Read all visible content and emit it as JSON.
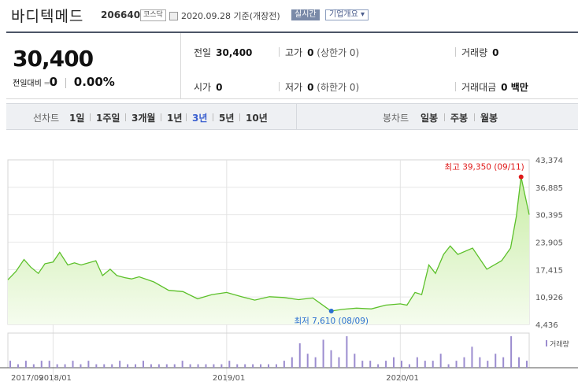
{
  "header": {
    "name": "바디텍메드",
    "code": "206640",
    "market": "코스닥",
    "date": "2020.09.28 기준(개장전)",
    "realtime_label": "실시간",
    "company_info_label": "기업개요"
  },
  "quote": {
    "price": "30,400",
    "change_label": "전일대비",
    "change_value": "0",
    "change_pct": "0.00%",
    "prev_close_label": "전일",
    "prev_close": "30,400",
    "high_label": "고가",
    "high": "0",
    "high_limit": "(상한가 0)",
    "volume_label": "거래량",
    "volume": "0",
    "open_label": "시가",
    "open": "0",
    "low_label": "저가",
    "low": "0",
    "low_limit": "(하한가 0)",
    "amount_label": "거래대금",
    "amount": "0 백만"
  },
  "periods": {
    "line_label": "선차트",
    "items": [
      "1일",
      "1주일",
      "3개월",
      "1년",
      "3년",
      "5년",
      "10년"
    ],
    "selected": "3년",
    "candle_label": "봉차트",
    "candle_items": [
      "일봉",
      "주봉",
      "월봉"
    ]
  },
  "colors": {
    "line": "#5cc02a",
    "fill_top": "#c9eda6",
    "fill_bottom": "#f5fcee",
    "high_marker": "#e01b1b",
    "low_marker": "#2a6fd1",
    "volume": "#9b8ccf"
  },
  "chart_data": {
    "type": "area",
    "y_ticks": [
      "43,374",
      "36,885",
      "30,395",
      "23,905",
      "17,415",
      "10,926",
      "4,436"
    ],
    "ylim": [
      4436,
      43374
    ],
    "x_ticks": [
      "2017/09",
      "2018/01",
      "2019/01",
      "2020/01"
    ],
    "max_annotation": "최고 39,350 (09/11)",
    "min_annotation": "최저 7,610 (08/09)",
    "volume_legend": "거래량",
    "series": [
      {
        "x": [
          "2017-09-28",
          "2017-10-15",
          "2017-11-01",
          "2017-11-15",
          "2017-12-01",
          "2017-12-15",
          "2018-01-01",
          "2018-01-15",
          "2018-02-01",
          "2018-02-15",
          "2018-03-01",
          "2018-04-01",
          "2018-04-15",
          "2018-05-01",
          "2018-05-15",
          "2018-06-01",
          "2018-06-15",
          "2018-07-01",
          "2018-08-01",
          "2018-09-01",
          "2018-10-01",
          "2018-11-01",
          "2018-12-01",
          "2019-01-01",
          "2019-02-01",
          "2019-03-01",
          "2019-04-01",
          "2019-05-01",
          "2019-06-01",
          "2019-07-01",
          "2019-08-01",
          "2019-08-09",
          "2019-09-01",
          "2019-10-01",
          "2019-11-01",
          "2019-12-01",
          "2020-01-01",
          "2020-01-15",
          "2020-02-01",
          "2020-02-15",
          "2020-03-01",
          "2020-03-15",
          "2020-04-01",
          "2020-04-15",
          "2020-05-01",
          "2020-06-01",
          "2020-07-01",
          "2020-08-01",
          "2020-08-20",
          "2020-09-01",
          "2020-09-11",
          "2020-09-28"
        ],
        "values": [
          15000,
          17000,
          19800,
          18000,
          16500,
          18800,
          19200,
          21500,
          18500,
          19000,
          18500,
          19500,
          16000,
          17500,
          16000,
          15500,
          15200,
          15700,
          14500,
          12500,
          12200,
          10500,
          11500,
          12000,
          11000,
          10200,
          11000,
          10800,
          10300,
          10700,
          8200,
          7610,
          8000,
          8300,
          8100,
          9000,
          9300,
          9000,
          12000,
          11500,
          18500,
          16500,
          21000,
          23000,
          21000,
          22500,
          17500,
          19500,
          22500,
          30000,
          39350,
          30400
        ]
      }
    ],
    "volume": [
      2,
      1,
      2,
      1,
      2,
      2,
      1,
      1,
      2,
      1,
      2,
      1,
      1,
      1,
      2,
      1,
      1,
      2,
      1,
      1,
      1,
      1,
      2,
      1,
      1,
      1,
      1,
      1,
      2,
      1,
      1,
      1,
      1,
      1,
      1,
      2,
      3,
      7,
      4,
      3,
      8,
      5,
      3,
      9,
      4,
      2,
      2,
      1,
      2,
      3,
      2,
      1,
      3,
      2,
      2,
      4,
      1,
      2,
      3,
      6,
      3,
      2,
      4,
      3,
      9,
      3,
      2
    ]
  }
}
